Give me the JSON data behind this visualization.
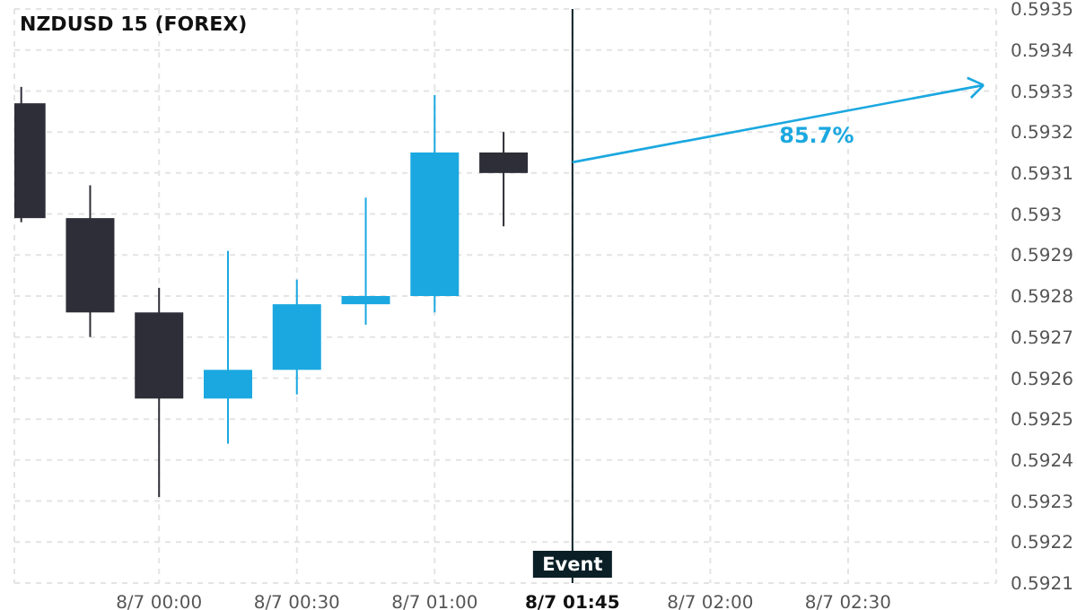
{
  "chart_data": {
    "type": "candlestick",
    "title": "NZDUSD 15 (FOREX)",
    "categories": [
      null,
      null,
      "8/7 00:00",
      null,
      "8/7 00:30",
      null,
      "8/7 01:00",
      null,
      "8/7 01:45",
      null,
      "8/7 02:00",
      null,
      "8/7 02:30",
      null,
      null
    ],
    "ohlc": [
      [
        0.59327,
        0.59331,
        0.59298,
        0.59299
      ],
      [
        0.59299,
        0.59307,
        0.5927,
        0.59276
      ],
      [
        0.59276,
        0.59282,
        0.59231,
        0.59255
      ],
      [
        0.59255,
        0.59291,
        0.59244,
        0.59262
      ],
      [
        0.59262,
        0.59284,
        0.59256,
        0.59278
      ],
      [
        0.59278,
        0.59304,
        0.59273,
        0.5928
      ],
      [
        0.5928,
        0.59329,
        0.59276,
        0.59315
      ],
      [
        0.59315,
        0.5932,
        0.59297,
        0.5931
      ],
      null,
      null,
      null,
      null,
      null,
      null,
      null
    ],
    "colors": [
      "#2d2e37",
      "#2d2e37",
      "#2d2e37",
      "#1ba8e0",
      "#1ba8e0",
      "#1ba8e0",
      "#1ba8e0",
      "#2d2e37",
      null,
      null,
      null,
      null,
      null,
      null,
      null
    ],
    "ylim": [
      0.5921,
      0.5935
    ],
    "yticks": [
      0.5921,
      0.5922,
      0.5923,
      0.5924,
      0.5925,
      0.5926,
      0.5927,
      0.5928,
      0.5929,
      0.593,
      0.5931,
      0.5932,
      0.5933,
      0.5934,
      0.5935
    ],
    "ref_lines": [
      {
        "axis": "x",
        "value": "8/7 01:45",
        "label": "Event",
        "color": "#0a1f26"
      }
    ],
    "annotations": [
      "85.7%"
    ],
    "grid": true
  }
}
